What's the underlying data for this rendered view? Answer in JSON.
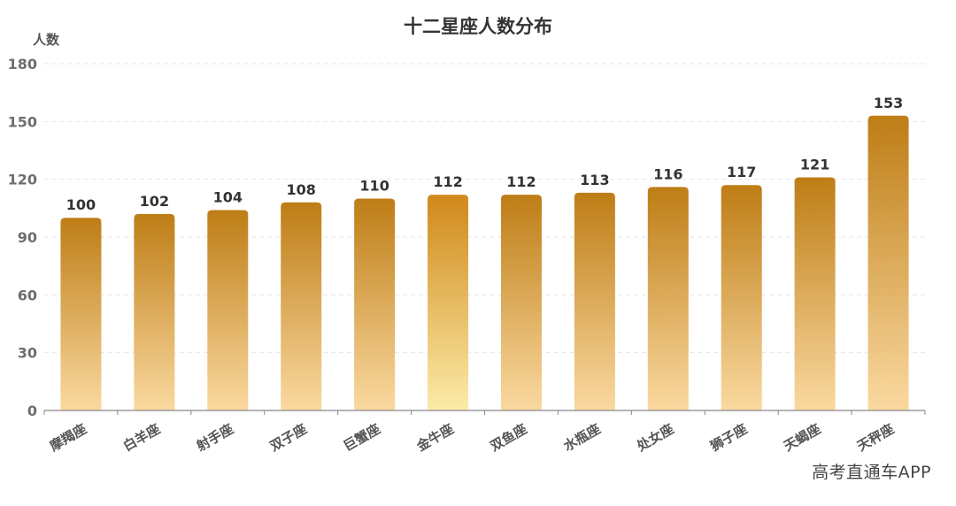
{
  "chart_data": {
    "type": "bar",
    "title": "十二星座人数分布",
    "ylabel": "人数",
    "xlabel": "",
    "ylim": [
      0,
      180
    ],
    "yticks": [
      0,
      30,
      60,
      90,
      120,
      150,
      180
    ],
    "grid": true,
    "categories": [
      "摩羯座",
      "白羊座",
      "射手座",
      "双子座",
      "巨蟹座",
      "金牛座",
      "双鱼座",
      "水瓶座",
      "处女座",
      "狮子座",
      "天蝎座",
      "天秤座"
    ],
    "values": [
      100,
      102,
      104,
      108,
      110,
      112,
      112,
      113,
      116,
      117,
      121,
      153
    ],
    "colors": {
      "bar_top": "#BE7D16",
      "bar_bottom": "#FAD9A0",
      "highlight_top": "#D0891A",
      "highlight_bottom": "#FCEBA8"
    }
  },
  "watermark": "高考直通车APP"
}
